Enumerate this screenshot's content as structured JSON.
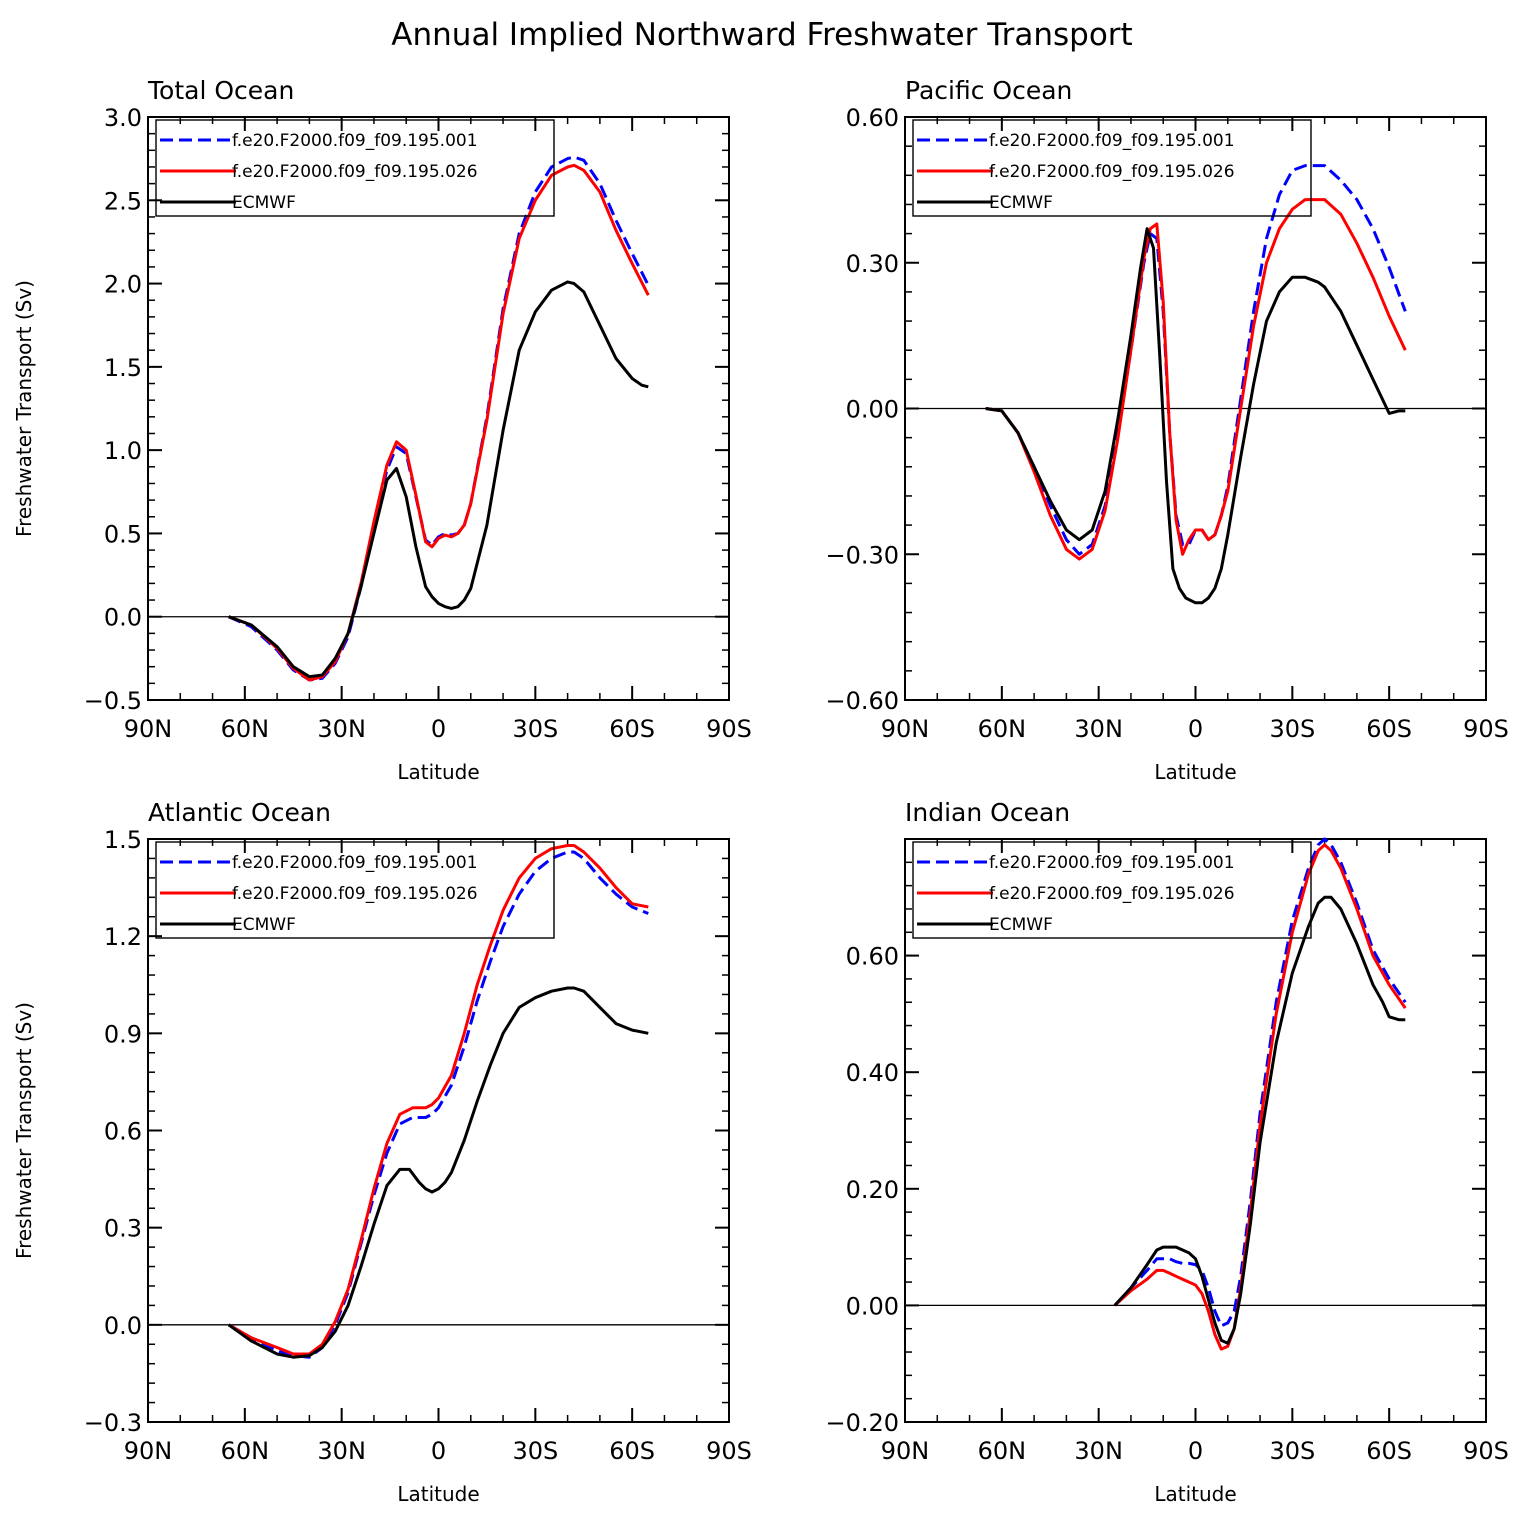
{
  "figure": {
    "title": "Annual Implied Northward Freshwater Transport"
  },
  "chart_data": [
    {
      "type": "line",
      "title": "Total Ocean",
      "xlabel": "Latitude",
      "ylabel": "Freshwater Transport (Sv)",
      "x_direction": "90N to 90S (latitude, negative = N)",
      "xlim": [
        -90,
        90
      ],
      "ylim": [
        -0.5,
        3.0
      ],
      "x_ticks": [
        -90,
        -60,
        -30,
        0,
        30,
        60,
        90
      ],
      "x_tick_labels": [
        "90N",
        "60N",
        "30N",
        "0",
        "30S",
        "60S",
        "90S"
      ],
      "y_ticks": [
        -0.5,
        0.0,
        0.5,
        1.0,
        1.5,
        2.0,
        2.5,
        3.0
      ],
      "y_tick_labels": [
        "−0.5",
        "0.0",
        "0.5",
        "1.0",
        "1.5",
        "2.0",
        "2.5",
        "3.0"
      ],
      "zero_line": true,
      "legend": "top-left",
      "series": [
        {
          "name": "f.e20.F2000.f09_f09.195.001",
          "color": "#0000ff",
          "dashed": true,
          "x": [
            -65,
            -58,
            -50,
            -45,
            -40,
            -36,
            -32,
            -28,
            -24,
            -20,
            -16,
            -13,
            -10,
            -7,
            -4,
            -2,
            0,
            2,
            4,
            6,
            8,
            10,
            15,
            20,
            25,
            30,
            35,
            40,
            42,
            45,
            50,
            55,
            60,
            65
          ],
          "y": [
            0.0,
            -0.06,
            -0.2,
            -0.32,
            -0.38,
            -0.37,
            -0.28,
            -0.12,
            0.18,
            0.55,
            0.88,
            1.02,
            0.98,
            0.72,
            0.46,
            0.43,
            0.48,
            0.5,
            0.49,
            0.5,
            0.55,
            0.68,
            1.2,
            1.85,
            2.3,
            2.55,
            2.7,
            2.75,
            2.76,
            2.74,
            2.6,
            2.38,
            2.18,
            1.99
          ]
        },
        {
          "name": "f.e20.F2000.f09_f09.195.026",
          "color": "#ff0000",
          "dashed": false,
          "x": [
            -65,
            -58,
            -50,
            -45,
            -40,
            -36,
            -32,
            -28,
            -24,
            -20,
            -16,
            -13,
            -10,
            -7,
            -4,
            -2,
            0,
            2,
            4,
            6,
            8,
            10,
            15,
            20,
            25,
            30,
            35,
            40,
            42,
            45,
            50,
            55,
            60,
            65
          ],
          "y": [
            0.0,
            -0.05,
            -0.19,
            -0.31,
            -0.38,
            -0.36,
            -0.27,
            -0.1,
            0.2,
            0.57,
            0.91,
            1.05,
            1.0,
            0.73,
            0.45,
            0.42,
            0.47,
            0.49,
            0.48,
            0.5,
            0.55,
            0.68,
            1.18,
            1.82,
            2.27,
            2.5,
            2.65,
            2.7,
            2.71,
            2.68,
            2.55,
            2.32,
            2.12,
            1.93
          ]
        },
        {
          "name": "ECMWF",
          "color": "#000000",
          "dashed": false,
          "x": [
            -65,
            -58,
            -50,
            -45,
            -40,
            -36,
            -32,
            -28,
            -24,
            -20,
            -16,
            -13,
            -10,
            -7,
            -4,
            -2,
            0,
            2,
            4,
            6,
            8,
            10,
            15,
            20,
            25,
            30,
            35,
            40,
            42,
            45,
            50,
            55,
            60,
            63,
            65
          ],
          "y": [
            0.0,
            -0.05,
            -0.18,
            -0.3,
            -0.36,
            -0.35,
            -0.25,
            -0.1,
            0.18,
            0.5,
            0.82,
            0.89,
            0.72,
            0.42,
            0.18,
            0.12,
            0.08,
            0.06,
            0.05,
            0.06,
            0.1,
            0.17,
            0.55,
            1.12,
            1.6,
            1.83,
            1.96,
            2.01,
            2.0,
            1.95,
            1.75,
            1.55,
            1.43,
            1.39,
            1.38
          ]
        }
      ]
    },
    {
      "type": "line",
      "title": "Pacific Ocean",
      "xlabel": "Latitude",
      "ylabel": "",
      "x_direction": "90N to 90S (latitude, negative = N)",
      "xlim": [
        -90,
        90
      ],
      "ylim": [
        -0.6,
        0.6
      ],
      "x_ticks": [
        -90,
        -60,
        -30,
        0,
        30,
        60,
        90
      ],
      "x_tick_labels": [
        "90N",
        "60N",
        "30N",
        "0",
        "30S",
        "60S",
        "90S"
      ],
      "y_ticks": [
        -0.6,
        -0.3,
        0.0,
        0.3,
        0.6
      ],
      "y_tick_labels": [
        "−0.60",
        "−0.30",
        "0.00",
        "0.30",
        "0.60"
      ],
      "zero_line": true,
      "legend": "top-left",
      "series": [
        {
          "name": "f.e20.F2000.f09_f09.195.001",
          "color": "#0000ff",
          "dashed": true,
          "x": [
            -65,
            -60,
            -55,
            -50,
            -45,
            -40,
            -36,
            -32,
            -28,
            -24,
            -20,
            -16,
            -14,
            -12,
            -10,
            -8,
            -6,
            -4,
            -2,
            0,
            2,
            4,
            6,
            8,
            10,
            14,
            18,
            22,
            26,
            30,
            34,
            38,
            40,
            45,
            50,
            55,
            60,
            65
          ],
          "y": [
            0.0,
            -0.005,
            -0.05,
            -0.12,
            -0.2,
            -0.27,
            -0.3,
            -0.28,
            -0.2,
            -0.05,
            0.12,
            0.3,
            0.36,
            0.35,
            0.2,
            -0.05,
            -0.22,
            -0.28,
            -0.28,
            -0.25,
            -0.25,
            -0.27,
            -0.26,
            -0.22,
            -0.16,
            0.02,
            0.2,
            0.35,
            0.44,
            0.49,
            0.5,
            0.5,
            0.5,
            0.47,
            0.43,
            0.37,
            0.29,
            0.2
          ]
        },
        {
          "name": "f.e20.F2000.f09_f09.195.026",
          "color": "#ff0000",
          "dashed": false,
          "x": [
            -65,
            -60,
            -55,
            -50,
            -45,
            -40,
            -36,
            -32,
            -28,
            -24,
            -20,
            -16,
            -14,
            -12,
            -10,
            -8,
            -6,
            -4,
            -2,
            0,
            2,
            4,
            6,
            8,
            10,
            14,
            18,
            22,
            26,
            30,
            34,
            38,
            40,
            45,
            50,
            55,
            60,
            65
          ],
          "y": [
            0.0,
            -0.005,
            -0.05,
            -0.13,
            -0.22,
            -0.29,
            -0.31,
            -0.29,
            -0.21,
            -0.06,
            0.12,
            0.31,
            0.37,
            0.38,
            0.22,
            -0.05,
            -0.23,
            -0.3,
            -0.27,
            -0.25,
            -0.25,
            -0.27,
            -0.26,
            -0.22,
            -0.17,
            0.0,
            0.17,
            0.3,
            0.37,
            0.41,
            0.43,
            0.43,
            0.43,
            0.4,
            0.34,
            0.27,
            0.19,
            0.12
          ]
        },
        {
          "name": "ECMWF",
          "color": "#000000",
          "dashed": false,
          "x": [
            -65,
            -60,
            -55,
            -50,
            -45,
            -40,
            -36,
            -32,
            -28,
            -24,
            -20,
            -17,
            -15,
            -13,
            -11,
            -9,
            -7,
            -5,
            -3,
            0,
            2,
            4,
            6,
            8,
            10,
            14,
            18,
            22,
            26,
            30,
            34,
            38,
            40,
            45,
            50,
            55,
            60,
            63,
            65
          ],
          "y": [
            0.0,
            -0.005,
            -0.05,
            -0.12,
            -0.19,
            -0.25,
            -0.27,
            -0.25,
            -0.17,
            -0.02,
            0.15,
            0.29,
            0.37,
            0.33,
            0.1,
            -0.15,
            -0.33,
            -0.37,
            -0.39,
            -0.4,
            -0.4,
            -0.39,
            -0.37,
            -0.33,
            -0.26,
            -0.1,
            0.05,
            0.18,
            0.24,
            0.27,
            0.27,
            0.26,
            0.25,
            0.2,
            0.13,
            0.06,
            -0.01,
            -0.005,
            -0.005
          ]
        }
      ]
    },
    {
      "type": "line",
      "title": "Atlantic Ocean",
      "xlabel": "Latitude",
      "ylabel": "Freshwater Transport (Sv)",
      "x_direction": "90N to 90S (latitude, negative = N)",
      "xlim": [
        -90,
        90
      ],
      "ylim": [
        -0.3,
        1.5
      ],
      "x_ticks": [
        -90,
        -60,
        -30,
        0,
        30,
        60,
        90
      ],
      "x_tick_labels": [
        "90N",
        "60N",
        "30N",
        "0",
        "30S",
        "60S",
        "90S"
      ],
      "y_ticks": [
        -0.3,
        0.0,
        0.3,
        0.6,
        0.9,
        1.2,
        1.5
      ],
      "y_tick_labels": [
        "−0.3",
        "0.0",
        "0.3",
        "0.6",
        "0.9",
        "1.2",
        "1.5"
      ],
      "zero_line": true,
      "legend": "top-left",
      "series": [
        {
          "name": "f.e20.F2000.f09_f09.195.001",
          "color": "#0000ff",
          "dashed": true,
          "x": [
            -65,
            -58,
            -50,
            -45,
            -40,
            -36,
            -32,
            -28,
            -24,
            -20,
            -16,
            -12,
            -8,
            -4,
            -2,
            0,
            4,
            8,
            12,
            16,
            20,
            25,
            30,
            35,
            40,
            42,
            45,
            50,
            55,
            60,
            65
          ],
          "y": [
            0.0,
            -0.04,
            -0.08,
            -0.095,
            -0.1,
            -0.07,
            0.0,
            0.1,
            0.25,
            0.4,
            0.53,
            0.62,
            0.64,
            0.64,
            0.65,
            0.67,
            0.74,
            0.86,
            1.0,
            1.12,
            1.23,
            1.33,
            1.4,
            1.44,
            1.46,
            1.46,
            1.44,
            1.38,
            1.33,
            1.29,
            1.27
          ]
        },
        {
          "name": "f.e20.F2000.f09_f09.195.026",
          "color": "#ff0000",
          "dashed": false,
          "x": [
            -65,
            -58,
            -50,
            -45,
            -40,
            -36,
            -32,
            -28,
            -24,
            -20,
            -16,
            -12,
            -8,
            -4,
            -2,
            0,
            4,
            8,
            12,
            16,
            20,
            25,
            30,
            35,
            40,
            42,
            45,
            50,
            55,
            60,
            65
          ],
          "y": [
            0.0,
            -0.04,
            -0.07,
            -0.09,
            -0.09,
            -0.06,
            0.01,
            0.11,
            0.26,
            0.42,
            0.56,
            0.65,
            0.67,
            0.67,
            0.68,
            0.7,
            0.77,
            0.9,
            1.05,
            1.17,
            1.28,
            1.38,
            1.44,
            1.47,
            1.48,
            1.48,
            1.46,
            1.41,
            1.35,
            1.3,
            1.29
          ]
        },
        {
          "name": "ECMWF",
          "color": "#000000",
          "dashed": false,
          "x": [
            -65,
            -58,
            -50,
            -45,
            -40,
            -36,
            -32,
            -28,
            -24,
            -20,
            -16,
            -12,
            -9,
            -6,
            -4,
            -2,
            0,
            2,
            4,
            8,
            12,
            16,
            20,
            25,
            30,
            35,
            40,
            42,
            45,
            50,
            55,
            60,
            65
          ],
          "y": [
            0.0,
            -0.05,
            -0.09,
            -0.1,
            -0.095,
            -0.07,
            -0.02,
            0.06,
            0.18,
            0.31,
            0.43,
            0.48,
            0.48,
            0.44,
            0.42,
            0.41,
            0.42,
            0.44,
            0.47,
            0.57,
            0.69,
            0.8,
            0.9,
            0.98,
            1.01,
            1.03,
            1.04,
            1.04,
            1.03,
            0.98,
            0.93,
            0.91,
            0.9
          ]
        }
      ]
    },
    {
      "type": "line",
      "title": "Indian Ocean",
      "xlabel": "Latitude",
      "ylabel": "",
      "x_direction": "90N to 90S (latitude, negative = N)",
      "xlim": [
        -90,
        90
      ],
      "ylim": [
        -0.2,
        0.8
      ],
      "x_ticks": [
        -90,
        -60,
        -30,
        0,
        30,
        60,
        90
      ],
      "x_tick_labels": [
        "90N",
        "60N",
        "30N",
        "0",
        "30S",
        "60S",
        "90S"
      ],
      "y_ticks": [
        -0.2,
        0.0,
        0.2,
        0.4,
        0.6
      ],
      "y_tick_labels": [
        "−0.20",
        "0.00",
        "0.20",
        "0.40",
        "0.60"
      ],
      "zero_line": true,
      "legend": "top-left",
      "series": [
        {
          "name": "f.e20.F2000.f09_f09.195.001",
          "color": "#0000ff",
          "dashed": true,
          "x": [
            -25,
            -20,
            -15,
            -12,
            -10,
            -8,
            -6,
            -4,
            -2,
            0,
            2,
            4,
            6,
            8,
            10,
            12,
            14,
            17,
            20,
            25,
            30,
            35,
            38,
            40,
            42,
            45,
            50,
            55,
            60,
            65
          ],
          "y": [
            0.0,
            0.03,
            0.06,
            0.08,
            0.08,
            0.08,
            0.075,
            0.072,
            0.072,
            0.07,
            0.06,
            0.03,
            -0.01,
            -0.035,
            -0.03,
            -0.01,
            0.05,
            0.18,
            0.33,
            0.52,
            0.66,
            0.75,
            0.79,
            0.8,
            0.79,
            0.76,
            0.69,
            0.61,
            0.56,
            0.52
          ]
        },
        {
          "name": "f.e20.F2000.f09_f09.195.026",
          "color": "#ff0000",
          "dashed": false,
          "x": [
            -25,
            -20,
            -15,
            -12,
            -10,
            -8,
            -6,
            -4,
            -2,
            0,
            2,
            4,
            6,
            8,
            10,
            12,
            14,
            17,
            20,
            25,
            30,
            35,
            38,
            40,
            42,
            45,
            50,
            55,
            60,
            65
          ],
          "y": [
            0.0,
            0.025,
            0.045,
            0.06,
            0.06,
            0.055,
            0.05,
            0.045,
            0.04,
            0.035,
            0.02,
            -0.01,
            -0.05,
            -0.075,
            -0.07,
            -0.04,
            0.03,
            0.16,
            0.31,
            0.5,
            0.64,
            0.74,
            0.78,
            0.79,
            0.78,
            0.75,
            0.68,
            0.6,
            0.55,
            0.51
          ]
        },
        {
          "name": "ECMWF",
          "color": "#000000",
          "dashed": false,
          "x": [
            -25,
            -20,
            -15,
            -12,
            -10,
            -8,
            -6,
            -4,
            -2,
            0,
            2,
            4,
            6,
            8,
            10,
            12,
            14,
            17,
            20,
            25,
            30,
            35,
            38,
            40,
            42,
            45,
            50,
            55,
            58,
            60,
            63,
            65
          ],
          "y": [
            0.0,
            0.03,
            0.07,
            0.095,
            0.1,
            0.1,
            0.1,
            0.095,
            0.09,
            0.08,
            0.05,
            0.01,
            -0.03,
            -0.06,
            -0.065,
            -0.04,
            0.02,
            0.14,
            0.28,
            0.45,
            0.57,
            0.65,
            0.69,
            0.7,
            0.7,
            0.68,
            0.62,
            0.55,
            0.52,
            0.495,
            0.49,
            0.49
          ]
        }
      ]
    }
  ]
}
